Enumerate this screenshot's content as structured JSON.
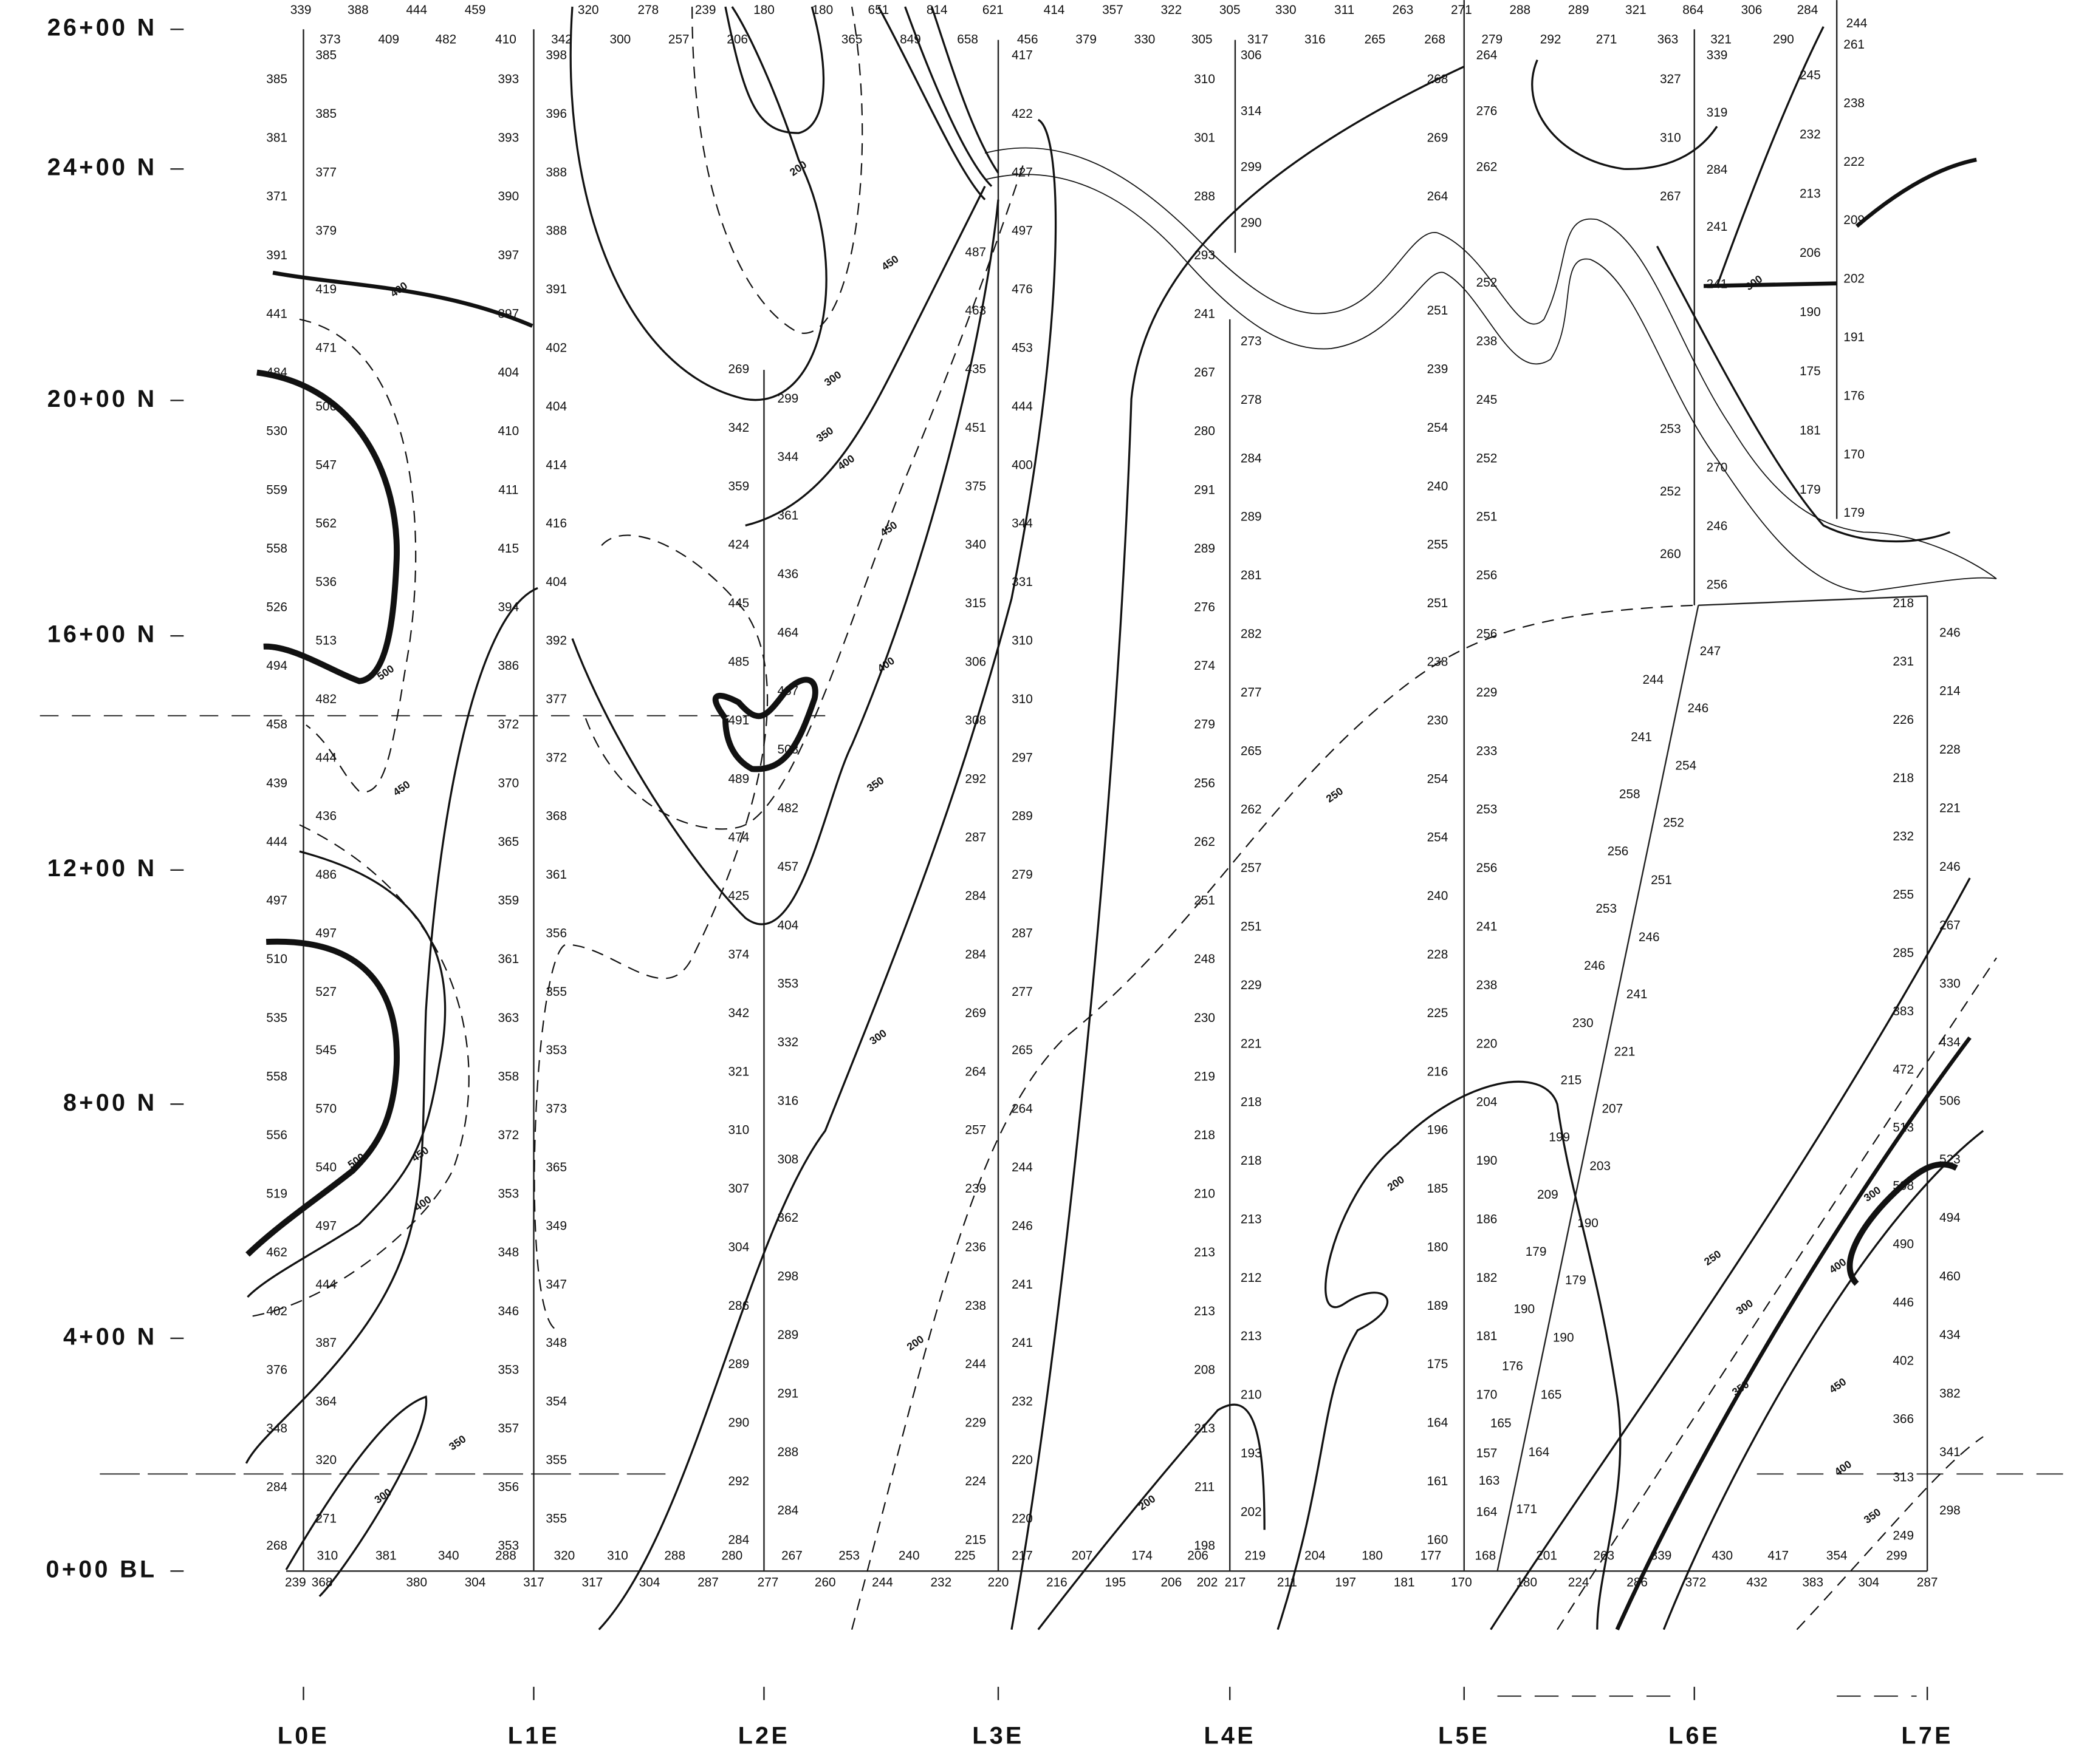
{
  "northing_labels": [
    "26+00 N",
    "24+00 N",
    "20+00 N",
    "16+00 N",
    "12+00 N",
    "8+00 N",
    "4+00 N",
    "0+00 BL"
  ],
  "line_labels": [
    "L0E",
    "L1E",
    "L2E",
    "L3E",
    "L4E",
    "L5E",
    "L6E",
    "L7E"
  ],
  "readings": [
    [
      385,
      381,
      371,
      391,
      441,
      484,
      530,
      559,
      558,
      526,
      494,
      458,
      439,
      444,
      497,
      510,
      535,
      558,
      556,
      519,
      462,
      402,
      376,
      348,
      284,
      268
    ],
    [
      385,
      385,
      377,
      379,
      419,
      471,
      506,
      547,
      562,
      536,
      513,
      482,
      444,
      436,
      486,
      497,
      527,
      545,
      570,
      540,
      497,
      444,
      387,
      364,
      320,
      271
    ],
    [
      393,
      393,
      390,
      397,
      397,
      404,
      410,
      411,
      415,
      394,
      386,
      372,
      370,
      365,
      359,
      361,
      363,
      358,
      372,
      353,
      348,
      346,
      353,
      357,
      356,
      353
    ],
    [
      398,
      396,
      388,
      388,
      391,
      402,
      404,
      414,
      416,
      404,
      392,
      377,
      372,
      368,
      361,
      356,
      355,
      353,
      373,
      365,
      349,
      347,
      348,
      354,
      355,
      355
    ],
    [
      269,
      342,
      359,
      424,
      445,
      485,
      491,
      489,
      474,
      425,
      374,
      342,
      321,
      310,
      307,
      304,
      286,
      289,
      290,
      292,
      284
    ],
    [
      299,
      344,
      361,
      436,
      464,
      487,
      503,
      482,
      457,
      404,
      353,
      332,
      316,
      308,
      362,
      298,
      289,
      291,
      288,
      284
    ],
    [
      487,
      463,
      435,
      451,
      375,
      340,
      315,
      306,
      308,
      292,
      287,
      284,
      284,
      269,
      264,
      257,
      239,
      236,
      238,
      244,
      229,
      224,
      215
    ],
    [
      417,
      422,
      427,
      497,
      476,
      453,
      444,
      400,
      344,
      331,
      310,
      310,
      297,
      289,
      279,
      287,
      277,
      265,
      264,
      244,
      246,
      241,
      241,
      232,
      220,
      220
    ],
    [
      310,
      301,
      288,
      293,
      241,
      267,
      280,
      291,
      289,
      276,
      274,
      279,
      256,
      262,
      251,
      248,
      230,
      219,
      218,
      210,
      213,
      213,
      208,
      213,
      211,
      198
    ],
    [
      306,
      314,
      299,
      290
    ],
    [
      273,
      278,
      284,
      289,
      281,
      282,
      277,
      265,
      262,
      257,
      251,
      229,
      221,
      218,
      218,
      213,
      212,
      213,
      210,
      193,
      202
    ],
    [
      268,
      269,
      264
    ],
    [
      251,
      239,
      254,
      240,
      255,
      251,
      238,
      230,
      254,
      254,
      240,
      228,
      225,
      216,
      196,
      185,
      180,
      189,
      175,
      164,
      161,
      160
    ],
    [
      264,
      276,
      262
    ],
    [
      252,
      238,
      245,
      252,
      251,
      256,
      256,
      229,
      233,
      253,
      256,
      241,
      238,
      220,
      204,
      190,
      186,
      182,
      181,
      170,
      157,
      164
    ],
    [
      327,
      310,
      267
    ],
    [
      253,
      252,
      260
    ],
    [
      339,
      319,
      284,
      241,
      241
    ],
    [
      270,
      246,
      256
    ],
    [
      245,
      232,
      213,
      206,
      190,
      175,
      181,
      179
    ],
    [
      261,
      238,
      222,
      209,
      202,
      191,
      176,
      170,
      179
    ],
    [
      218,
      231,
      226,
      218,
      232,
      255,
      285,
      383,
      472,
      513,
      508,
      490,
      446,
      402,
      366,
      313,
      249
    ],
    [
      246,
      214,
      228,
      221,
      246,
      267,
      330,
      434,
      506,
      523,
      494,
      460,
      434,
      382,
      341,
      298
    ]
  ],
  "baseline_upper": [
    310,
    381,
    340,
    288,
    320,
    310,
    288,
    280,
    267,
    253,
    240,
    225,
    217,
    207,
    174,
    206,
    219,
    204,
    180,
    177,
    168,
    201,
    263,
    339,
    430,
    417,
    354,
    299
  ],
  "baseline_lower": [
    239,
    368,
    380,
    304,
    317,
    317,
    304,
    287,
    277,
    260,
    244,
    232,
    220,
    216,
    195,
    206,
    202,
    217,
    211,
    197,
    181,
    170,
    180,
    224,
    286,
    372,
    432,
    383,
    304,
    287
  ],
  "top_row_1": [
    339,
    388,
    444,
    459,
    320,
    278,
    239,
    180,
    180,
    651,
    814,
    621,
    414,
    357,
    322,
    305,
    330,
    311,
    263,
    271,
    288,
    289,
    321,
    864,
    306,
    284,
    244
  ],
  "top_row_2": [
    373,
    409,
    482,
    410,
    342,
    300,
    257,
    206,
    365,
    849,
    658,
    456,
    379,
    330,
    305,
    317,
    316,
    265,
    268,
    279,
    292,
    271,
    363,
    321,
    290
  ],
  "diagonal_readings": [
    247,
    244,
    246,
    241,
    254,
    258,
    252,
    256,
    251,
    253,
    246,
    246,
    241,
    230,
    221,
    215,
    207,
    199,
    203,
    209,
    190,
    179,
    179,
    190,
    190,
    176,
    165,
    165,
    164,
    163,
    171
  ],
  "contour_labels": [
    400,
    500,
    500,
    450,
    400,
    300,
    350,
    200,
    300,
    350,
    400,
    450,
    400,
    350,
    300,
    200,
    250,
    200,
    200,
    300,
    250,
    300,
    350,
    400,
    300,
    400,
    350,
    450,
    450,
    450
  ]
}
